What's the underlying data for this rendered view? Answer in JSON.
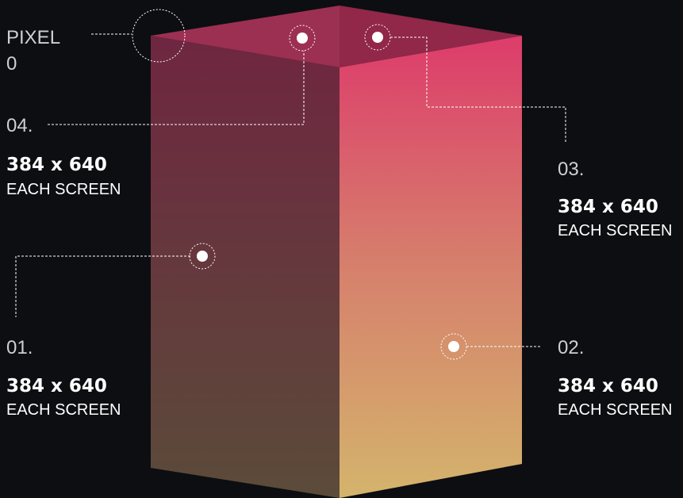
{
  "pixel_zero": {
    "lines": [
      "PIXEL",
      "0"
    ]
  },
  "screens": [
    {
      "number": "01.",
      "size": "384 x 640",
      "caption": "EACH SCREEN"
    },
    {
      "number": "02.",
      "size": "384 x 640",
      "caption": "EACH SCREEN"
    },
    {
      "number": "03.",
      "size": "384 x 640",
      "caption": "EACH SCREEN"
    },
    {
      "number": "04.",
      "size": "384 x 640",
      "caption": "EACH SCREEN"
    }
  ]
}
